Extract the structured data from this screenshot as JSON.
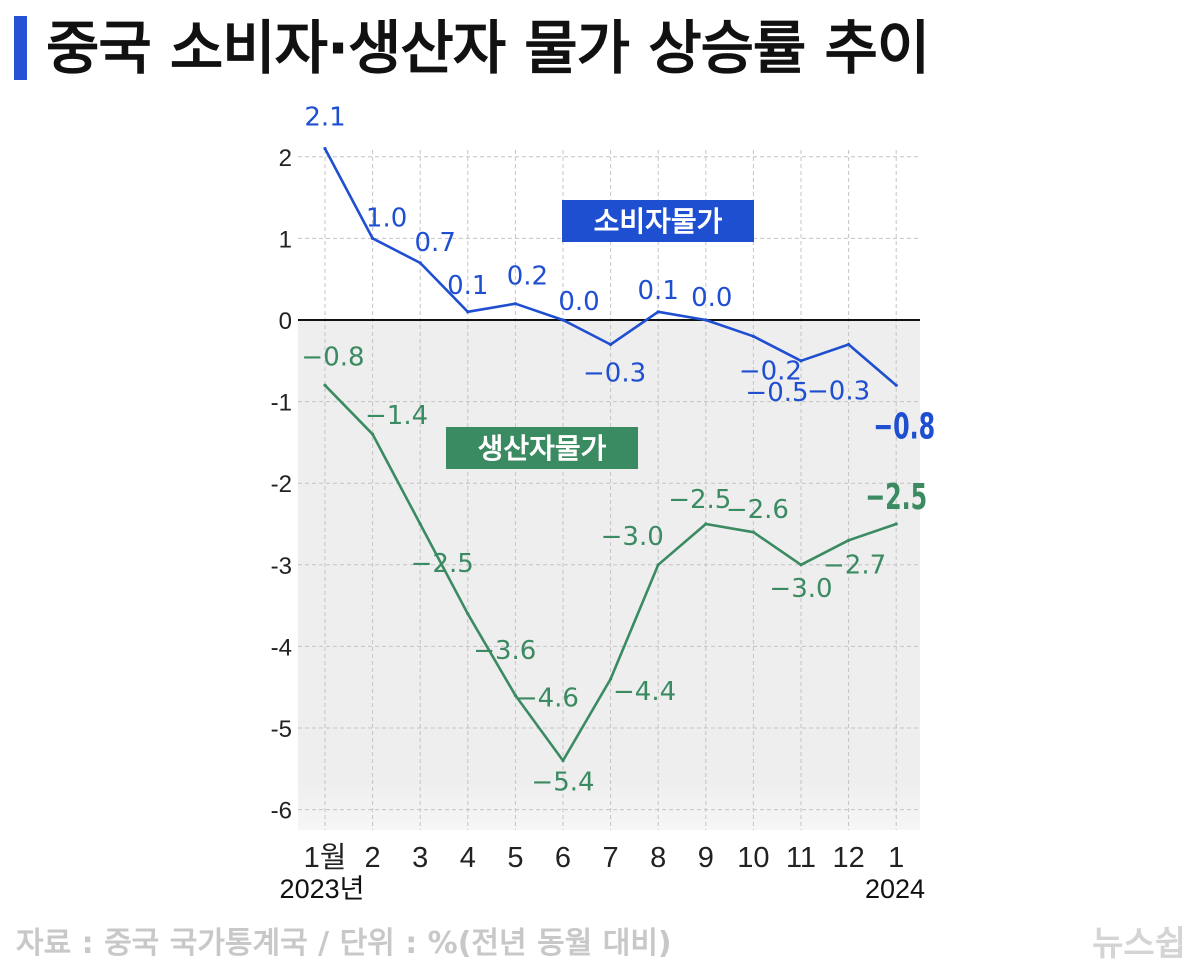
{
  "title": "중국 소비자·생산자 물가 상승률 추이",
  "source_note": "자료 : 중국 국가통계국 / 단위 : %(전년 동월 대비)",
  "watermark": "뉴스쉽",
  "colors": {
    "accent": "#2451d6",
    "consumer": "#1f4fd1",
    "producer": "#3a8a62",
    "negative_bg": "#eeeeee"
  },
  "chart_data": {
    "type": "line",
    "categories": [
      "1월",
      "2",
      "3",
      "4",
      "5",
      "6",
      "7",
      "8",
      "9",
      "10",
      "11",
      "12",
      "1"
    ],
    "year_labels": {
      "start": "2023년",
      "end": "2024"
    },
    "y_ticks": [
      "2",
      "1",
      "0",
      "-1",
      "-2",
      "-3",
      "-4",
      "-5",
      "-6"
    ],
    "ylim": [
      -6.25,
      2.1
    ],
    "grid": true,
    "series": [
      {
        "name": "소비자물가",
        "color": "#1f4fd1",
        "values": [
          2.1,
          1.0,
          0.7,
          0.1,
          0.2,
          0.0,
          -0.3,
          0.1,
          0.0,
          -0.2,
          -0.5,
          -0.3,
          -0.8
        ],
        "labels": [
          "2.1",
          "1.0",
          "0.7",
          "0.1",
          "0.2",
          "0.0",
          "-0.3",
          "0.1",
          "0.0",
          "-0.2",
          "-0.5",
          "-0.3",
          "-0.8"
        ]
      },
      {
        "name": "생산자물가",
        "color": "#3a8a62",
        "values": [
          -0.8,
          -1.4,
          -2.5,
          -3.6,
          -4.6,
          -5.4,
          -4.4,
          -3.0,
          -2.5,
          -2.6,
          -3.0,
          -2.7,
          -2.5
        ],
        "labels": [
          "-0.8",
          "-1.4",
          "-2.5",
          "-3.6",
          "-4.6",
          "-5.4",
          "-4.4",
          "-3.0",
          "-2.5",
          "-2.6",
          "-3.0",
          "-2.7",
          "-2.5"
        ]
      }
    ]
  }
}
